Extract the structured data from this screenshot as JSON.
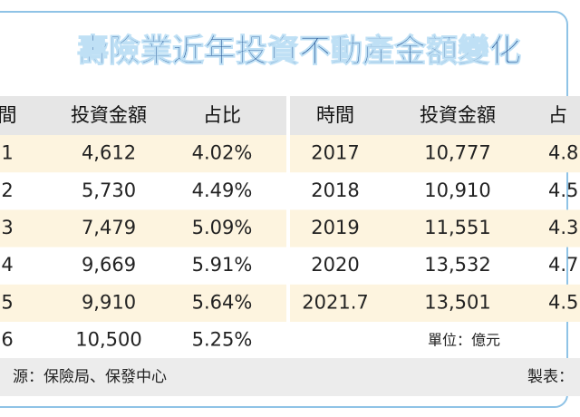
{
  "header": {
    "title": "壽險業近年投資不動產金額變化"
  },
  "left_table": {
    "columns": [
      "間",
      "投資金額",
      "占比"
    ],
    "rows": [
      [
        "1",
        "4,612",
        "4.02%"
      ],
      [
        "2",
        "5,730",
        "4.49%"
      ],
      [
        "3",
        "7,479",
        "5.09%"
      ],
      [
        "4",
        "9,669",
        "5.91%"
      ],
      [
        "5",
        "9,910",
        "5.64%"
      ],
      [
        "6",
        "10,500",
        "5.25%"
      ]
    ]
  },
  "right_table": {
    "columns": [
      "時間",
      "投資金額",
      "占"
    ],
    "rows": [
      [
        "2017",
        "10,777",
        "4.8"
      ],
      [
        "2018",
        "10,910",
        "4.5"
      ],
      [
        "2019",
        "11,551",
        "4.3"
      ],
      [
        "2020",
        "13,532",
        "4.7"
      ],
      [
        "2021.7",
        "13,501",
        "4.5"
      ]
    ],
    "unit_note": "單位：億元"
  },
  "footer": {
    "source": "源：保險局、保發中心",
    "credit": "製表："
  }
}
